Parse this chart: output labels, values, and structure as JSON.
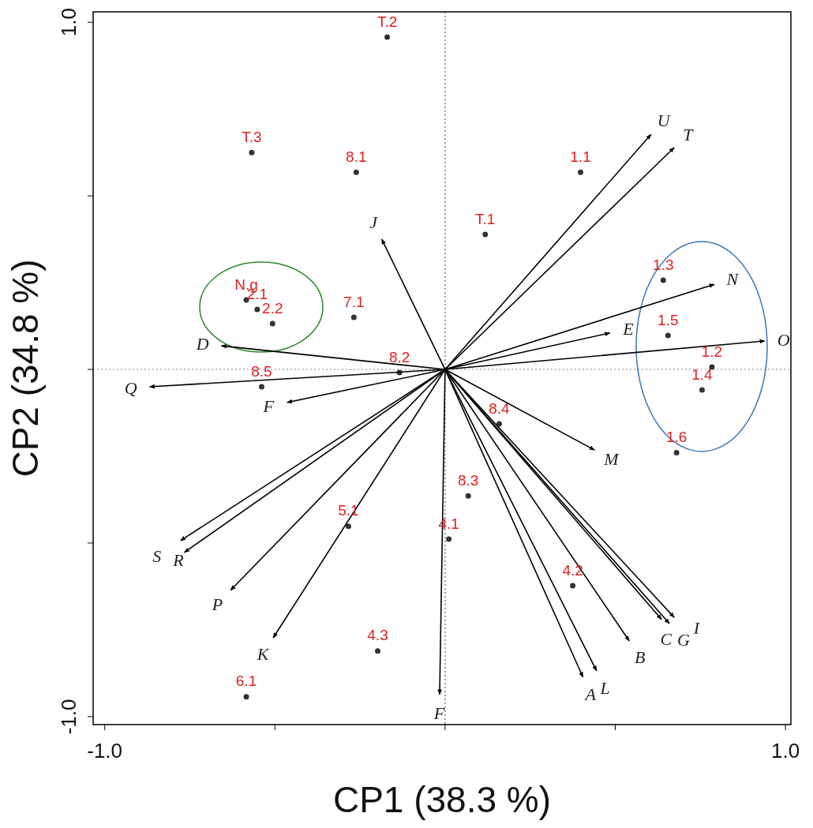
{
  "chart_data": {
    "type": "scatter",
    "xlabel": "CP1 (38.3 %)",
    "ylabel": "CP2 (34.8 %)",
    "xlim": [
      -1.034,
      1.016
    ],
    "ylim": [
      -1.023,
      1.03
    ],
    "xticks": [
      {
        "value": -1,
        "label": "-1.0"
      },
      {
        "value": -0.5,
        "label": null
      },
      {
        "value": 0,
        "label": null
      },
      {
        "value": 0.5,
        "label": null
      },
      {
        "value": 1,
        "label": "1.0"
      }
    ],
    "yticks": [
      {
        "value": -1,
        "label": "-1.0"
      },
      {
        "value": -0.5,
        "label": null
      },
      {
        "value": 0,
        "label": null
      },
      {
        "value": 0.5,
        "label": null
      },
      {
        "value": 1,
        "label": "1.0"
      }
    ],
    "grid": false,
    "legend": false,
    "ref_lines": [
      {
        "axis": "x",
        "value": 0,
        "color": "#888888",
        "line_style": "dotted"
      },
      {
        "axis": "y",
        "value": 0,
        "color": "#aaaaaa",
        "line_style": "dotted"
      }
    ],
    "series": [
      {
        "color": "#333333",
        "marker": "circle",
        "x": [
          -0.17,
          -0.568,
          -0.261,
          0.398,
          0.118,
          -0.584,
          -0.552,
          -0.507,
          -0.268,
          -0.134,
          0.641,
          0.655,
          0.784,
          0.755,
          0.68,
          -0.539,
          0.159,
          0.068,
          -0.284,
          0.011,
          0.375,
          -0.198,
          -0.584
        ],
        "values": [
          0.957,
          0.625,
          0.568,
          0.568,
          0.389,
          0.2,
          0.173,
          0.132,
          0.15,
          -0.009,
          0.257,
          0.098,
          0.007,
          -0.059,
          -0.24,
          -0.05,
          -0.157,
          -0.364,
          -0.452,
          -0.489,
          -0.623,
          -0.811,
          -0.943
        ]
      },
      {
        "type": "line",
        "name": "U",
        "color": "#000000",
        "marker": "none",
        "x": [
          0,
          0.605
        ],
        "values": [
          0,
          0.677
        ]
      },
      {
        "type": "line",
        "name": "T",
        "color": "#000000",
        "marker": "none",
        "x": [
          0,
          0.673
        ],
        "values": [
          0,
          0.639
        ]
      },
      {
        "type": "line",
        "name": "J",
        "color": "#000000",
        "marker": "none",
        "x": [
          0,
          -0.186
        ],
        "values": [
          0,
          0.375
        ]
      },
      {
        "type": "line",
        "name": "N",
        "color": "#000000",
        "marker": "none",
        "x": [
          0,
          0.791
        ],
        "values": [
          0,
          0.245
        ]
      },
      {
        "type": "line",
        "name": "E",
        "color": "#000000",
        "marker": "none",
        "x": [
          0,
          0.484
        ],
        "values": [
          0,
          0.105
        ]
      },
      {
        "type": "line",
        "name": "O",
        "color": "#000000",
        "marker": "none",
        "x": [
          0,
          0.939
        ],
        "values": [
          0,
          0.082
        ]
      },
      {
        "type": "line",
        "name": "D",
        "color": "#000000",
        "marker": "none",
        "x": [
          0,
          -0.657
        ],
        "values": [
          0,
          0.068
        ]
      },
      {
        "type": "line",
        "name": "Q",
        "color": "#000000",
        "marker": "none",
        "x": [
          0,
          -0.868
        ],
        "values": [
          0,
          -0.05
        ]
      },
      {
        "type": "line",
        "name": "F",
        "color": "#000000",
        "marker": "none",
        "x": [
          0,
          -0.464
        ],
        "values": [
          0,
          -0.095
        ]
      },
      {
        "type": "line",
        "name": "M",
        "color": "#000000",
        "marker": "none",
        "x": [
          0,
          0.439
        ],
        "values": [
          0,
          -0.232
        ]
      },
      {
        "type": "line",
        "name": "S",
        "color": "#000000",
        "marker": "none",
        "x": [
          0,
          -0.777
        ],
        "values": [
          0,
          -0.493
        ]
      },
      {
        "type": "line",
        "name": "R",
        "color": "#000000",
        "marker": "none",
        "x": [
          0,
          -0.766
        ],
        "values": [
          0,
          -0.527
        ]
      },
      {
        "type": "line",
        "name": "P",
        "color": "#000000",
        "marker": "none",
        "x": [
          0,
          -0.63
        ],
        "values": [
          0,
          -0.636
        ]
      },
      {
        "type": "line",
        "name": "K",
        "color": "#000000",
        "marker": "none",
        "x": [
          0,
          -0.505
        ],
        "values": [
          0,
          -0.773
        ]
      },
      {
        "type": "line",
        "name": "F",
        "color": "#000000",
        "marker": "none",
        "x": [
          0,
          -0.016
        ],
        "values": [
          0,
          -0.936
        ]
      },
      {
        "type": "line",
        "name": "A",
        "color": "#000000",
        "marker": "none",
        "x": [
          0,
          0.405
        ],
        "values": [
          0,
          -0.886
        ]
      },
      {
        "type": "line",
        "name": "L",
        "color": "#000000",
        "marker": "none",
        "x": [
          0,
          0.445
        ],
        "values": [
          0,
          -0.868
        ]
      },
      {
        "type": "line",
        "name": "B",
        "color": "#000000",
        "marker": "none",
        "x": [
          0,
          0.541
        ],
        "values": [
          0,
          -0.782
        ]
      },
      {
        "type": "line",
        "name": "C",
        "color": "#000000",
        "marker": "none",
        "x": [
          0,
          0.636
        ],
        "values": [
          0,
          -0.72
        ]
      },
      {
        "type": "line",
        "name": "G",
        "color": "#000000",
        "marker": "none",
        "x": [
          0,
          0.659
        ],
        "values": [
          0,
          -0.732
        ]
      },
      {
        "type": "line",
        "name": "I",
        "color": "#000000",
        "marker": "none",
        "x": [
          0,
          0.673
        ],
        "values": [
          0,
          -0.714
        ]
      }
    ],
    "annotations": [
      {
        "text": "T.2",
        "x": -0.17,
        "y": 0.957
      },
      {
        "text": "T.3",
        "x": -0.568,
        "y": 0.625
      },
      {
        "text": "8.1",
        "x": -0.261,
        "y": 0.568
      },
      {
        "text": "1.1",
        "x": 0.398,
        "y": 0.568
      },
      {
        "text": "T.1",
        "x": 0.118,
        "y": 0.389
      },
      {
        "text": "N.g",
        "x": -0.584,
        "y": 0.2
      },
      {
        "text": "2.1",
        "x": -0.552,
        "y": 0.173
      },
      {
        "text": "2.2",
        "x": -0.507,
        "y": 0.132
      },
      {
        "text": "7.1",
        "x": -0.268,
        "y": 0.15
      },
      {
        "text": "8.2",
        "x": -0.134,
        "y": -0.009
      },
      {
        "text": "1.3",
        "x": 0.641,
        "y": 0.257
      },
      {
        "text": "1.5",
        "x": 0.655,
        "y": 0.098
      },
      {
        "text": "1.2",
        "x": 0.784,
        "y": 0.007
      },
      {
        "text": "1.4",
        "x": 0.755,
        "y": -0.059
      },
      {
        "text": "1.6",
        "x": 0.68,
        "y": -0.24
      },
      {
        "text": "8.5",
        "x": -0.539,
        "y": -0.05
      },
      {
        "text": "8.4",
        "x": 0.159,
        "y": -0.157
      },
      {
        "text": "8.3",
        "x": 0.068,
        "y": -0.364
      },
      {
        "text": "5.1",
        "x": -0.284,
        "y": -0.452
      },
      {
        "text": "4.1",
        "x": 0.011,
        "y": -0.489
      },
      {
        "text": "4.2",
        "x": 0.375,
        "y": -0.623
      },
      {
        "text": "4.3",
        "x": -0.198,
        "y": -0.811
      },
      {
        "text": "6.1",
        "x": -0.584,
        "y": -0.943
      }
    ]
  }
}
